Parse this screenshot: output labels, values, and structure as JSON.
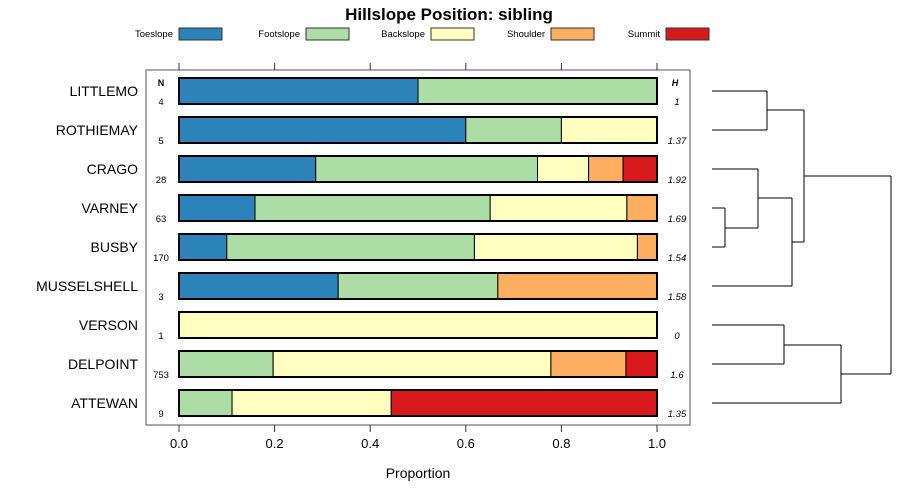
{
  "chart_data": {
    "type": "bar",
    "orientation": "horizontal-stacked",
    "title": "Hillslope Position: sibling",
    "xlabel": "Proportion",
    "xlim": [
      0,
      1
    ],
    "xticks": [
      "0.0",
      "0.2",
      "0.4",
      "0.6",
      "0.8",
      "1.0"
    ],
    "xtick_values": [
      0,
      0.2,
      0.4,
      0.6,
      0.8,
      1.0
    ],
    "n_header": "N",
    "h_header": "H",
    "legend_placement": "top",
    "categories": [
      "LITTLEMO",
      "ROTHIEMAY",
      "CRAGO",
      "VARNEY",
      "BUSBY",
      "MUSSELSHELL",
      "VERSON",
      "DELPOINT",
      "ATTEWAN"
    ],
    "n": [
      "4",
      "5",
      "28",
      "63",
      "170",
      "3",
      "1",
      "753",
      "9"
    ],
    "h": [
      "1",
      "1.37",
      "1.92",
      "1.69",
      "1.54",
      "1.58",
      "0",
      "1.6",
      "1.35"
    ],
    "series": [
      {
        "name": "Toeslope",
        "color": "#2b83ba",
        "values": [
          0.5,
          0.6,
          0.286,
          0.159,
          0.1,
          0.333,
          0,
          0,
          0
        ]
      },
      {
        "name": "Footslope",
        "color": "#abdda4",
        "values": [
          0.5,
          0.2,
          0.464,
          0.492,
          0.518,
          0.334,
          0,
          0.197,
          0.111
        ]
      },
      {
        "name": "Backslope",
        "color": "#ffffbf",
        "values": [
          0,
          0.2,
          0.107,
          0.286,
          0.341,
          0,
          1,
          0.581,
          0.333
        ]
      },
      {
        "name": "Shoulder",
        "color": "#fdae61",
        "values": [
          0,
          0,
          0.072,
          0.063,
          0.041,
          0.333,
          0,
          0.157,
          0
        ]
      },
      {
        "name": "Summit",
        "color": "#d7191c",
        "values": [
          0,
          0,
          0.071,
          0,
          0,
          0,
          0,
          0.065,
          0.556
        ]
      }
    ]
  }
}
